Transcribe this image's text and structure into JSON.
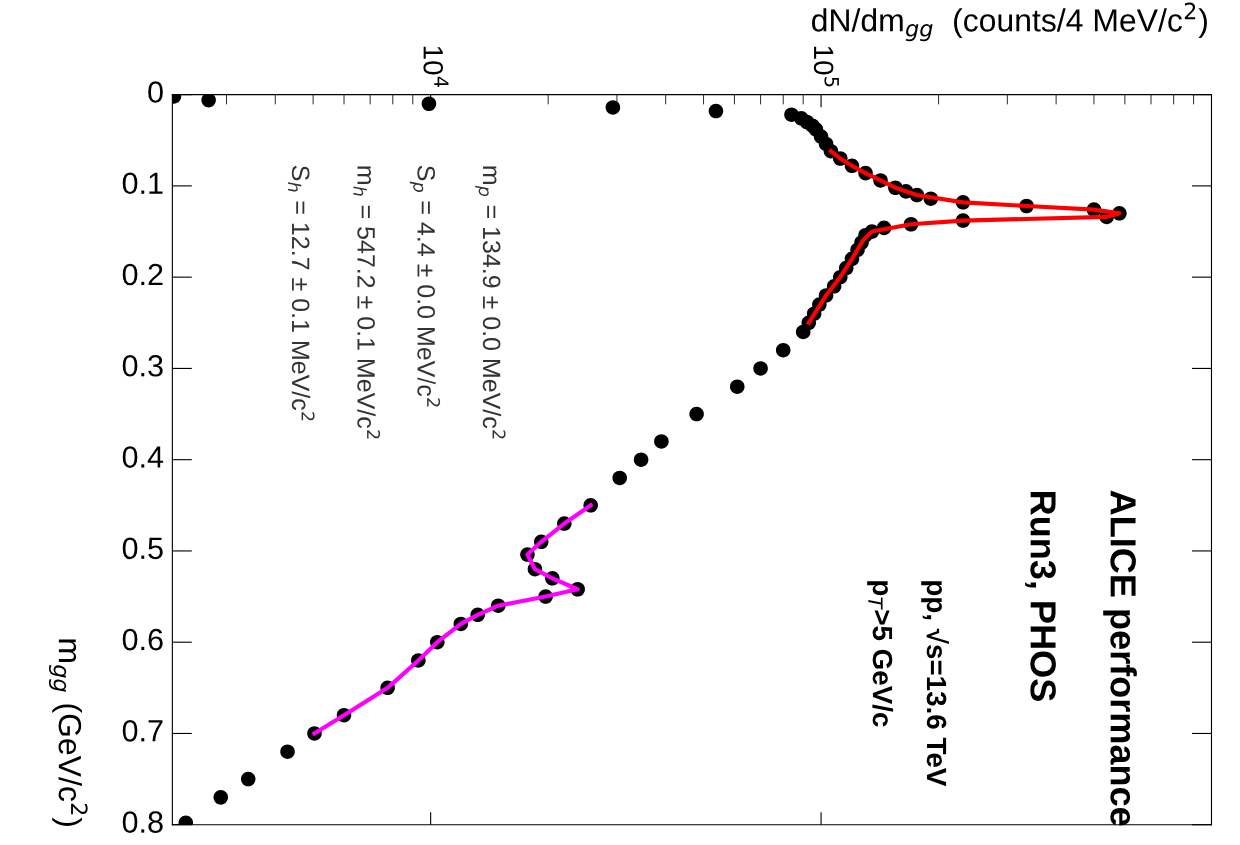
{
  "chart_data": {
    "type": "scatter",
    "xlabel": "dN/dm$_{gg}$  (counts/4 MeV/c$^{2}$)",
    "ylabel": "m$_{gg}$ (GeV/c$^{2}$)",
    "log": "x",
    "grid": false,
    "legend": false,
    "ylim": [
      0.8,
      0
    ],
    "yticks": [
      0,
      0.1,
      0.2,
      0.3,
      0.4,
      0.5,
      0.6,
      0.7,
      0.8
    ],
    "xlim": [
      2180,
      1000000
    ],
    "xticks": [
      {
        "value": 10000,
        "label": "10$^{4}$"
      },
      {
        "value": 100000,
        "label": "10$^{5}$"
      }
    ],
    "annotations": [
      "ALICE performance",
      "Run3, PHOS",
      "pp, √s=13.6 TeV",
      "p$_{T}$>5 GeV/c",
      "m$_{p}$ = 134.9 ± 0.0 MeV/c$^{2}$",
      "S$_{p}$ = 4.4 ± 0.0 MeV/c$^{2}$",
      "m$_{h}$ = 547.2 ± 0.1 MeV/c$^{2}$",
      "S$_{h}$ = 12.7 ± 0.1 MeV/c$^{2}$"
    ],
    "series": [
      {
        "color": "#000000",
        "marker": "circle",
        "values": [
          0.002,
          0.006,
          0.01,
          0.014,
          0.018,
          0.022,
          0.026,
          0.03,
          0.034,
          0.038,
          0.046,
          0.054,
          0.062,
          0.07,
          0.078,
          0.086,
          0.094,
          0.102,
          0.106,
          0.11,
          0.114,
          0.118,
          0.122,
          0.126,
          0.13,
          0.134,
          0.138,
          0.142,
          0.146,
          0.15,
          0.154,
          0.162,
          0.17,
          0.18,
          0.19,
          0.2,
          0.21,
          0.22,
          0.23,
          0.24,
          0.25,
          0.26,
          0.28,
          0.3,
          0.32,
          0.35,
          0.38,
          0.4,
          0.42,
          0.45,
          0.47,
          0.49,
          0.504,
          0.52,
          0.53,
          0.542,
          0.55,
          0.56,
          0.57,
          0.58,
          0.6,
          0.62,
          0.65,
          0.68,
          0.7,
          0.72,
          0.75,
          0.77,
          0.798
        ],
        "x": [
          2200,
          2700,
          9900,
          29300,
          53800,
          84000,
          89000,
          92000,
          95000,
          97000,
          100000,
          103000,
          106000,
          112000,
          120000,
          130000,
          142000,
          155000,
          165000,
          176000,
          191000,
          231000,
          336000,
          500000,
          581000,
          539000,
          231000,
          170000,
          145000,
          135000,
          130000,
          127000,
          124000,
          120000,
          116000,
          112000,
          108000,
          103000,
          99000,
          96000,
          93000,
          90000,
          80000,
          70000,
          61000,
          48000,
          39000,
          34600,
          30500,
          25700,
          22000,
          19200,
          17700,
          18500,
          20500,
          23800,
          19700,
          14900,
          13200,
          11950,
          10400,
          9300,
          7760,
          6000,
          5040,
          4300,
          3410,
          2900,
          2360
        ]
      },
      {
        "type": "line",
        "color": "#ff0000",
        "values": [
          0.062,
          0.07,
          0.078,
          0.086,
          0.094,
          0.102,
          0.11,
          0.118,
          0.122,
          0.126,
          0.13,
          0.134,
          0.138,
          0.142,
          0.15,
          0.16,
          0.18,
          0.2,
          0.22,
          0.25
        ],
        "x": [
          106000,
          112000,
          120000,
          130000,
          142000,
          155000,
          176000,
          231000,
          336000,
          500000,
          581000,
          539000,
          231000,
          170000,
          135000,
          128000,
          120000,
          112000,
          103000,
          93000
        ]
      },
      {
        "type": "line",
        "color": "#ff00ff",
        "values": [
          0.45,
          0.47,
          0.49,
          0.504,
          0.52,
          0.53,
          0.542,
          0.55,
          0.56,
          0.57,
          0.58,
          0.6,
          0.62,
          0.65,
          0.68,
          0.7
        ],
        "x": [
          25700,
          22000,
          19200,
          17700,
          18500,
          20500,
          23800,
          19700,
          14900,
          13200,
          11950,
          10400,
          9300,
          7760,
          6000,
          5040
        ]
      }
    ]
  }
}
